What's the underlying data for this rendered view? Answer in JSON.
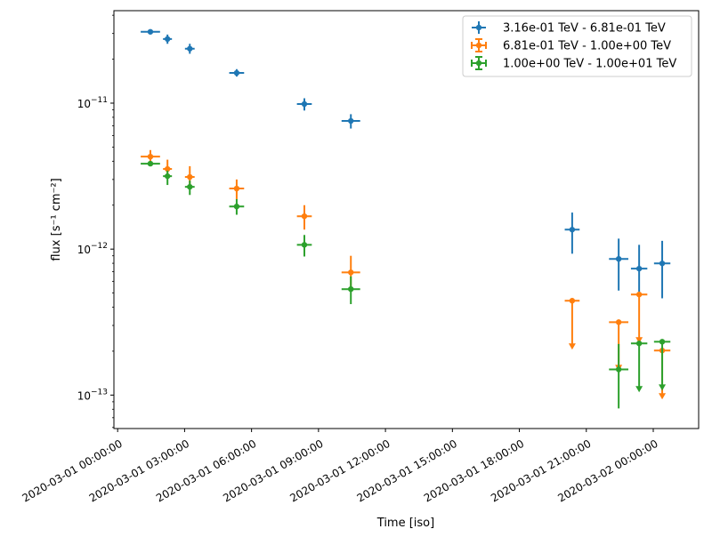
{
  "chart_data": {
    "type": "scatter",
    "title": "",
    "xlabel": "Time [iso]",
    "ylabel": "flux [s⁻¹ cm⁻²]",
    "yscale": "log",
    "ylim": [
      5.9e-14,
      4.3e-11
    ],
    "xlim": [
      "2020-02-29T23:50",
      "2020-03-02T02:02"
    ],
    "grid": false,
    "legend_position": "top-right",
    "x_ticks": [
      {
        "t": "2020-03-01T00:00",
        "label": "2020-03-01 00:00:00"
      },
      {
        "t": "2020-03-01T03:00",
        "label": "2020-03-01 03:00:00"
      },
      {
        "t": "2020-03-01T06:00",
        "label": "2020-03-01 06:00:00"
      },
      {
        "t": "2020-03-01T09:00",
        "label": "2020-03-01 09:00:00"
      },
      {
        "t": "2020-03-01T12:00",
        "label": "2020-03-01 12:00:00"
      },
      {
        "t": "2020-03-01T15:00",
        "label": "2020-03-01 15:00:00"
      },
      {
        "t": "2020-03-01T18:00",
        "label": "2020-03-01 18:00:00"
      },
      {
        "t": "2020-03-01T21:00",
        "label": "2020-03-01 21:00:00"
      },
      {
        "t": "2020-03-02T00:00",
        "label": "2020-03-02 00:00:00"
      }
    ],
    "y_ticks": [
      {
        "value": 1e-11,
        "base": "10",
        "exp": "−11"
      },
      {
        "value": 1e-12,
        "base": "10",
        "exp": "−12"
      },
      {
        "value": 1e-13,
        "base": "10",
        "exp": "−13"
      }
    ],
    "series": [
      {
        "name": "3.16e-01 TeV - 6.81e-01 TeV",
        "color": "#1f77b4",
        "points": [
          {
            "t": "2020-03-01T01:28",
            "xerr_min": 26,
            "y": 3.08e-11,
            "ylo": 2.98e-11,
            "yhi": 3.18e-11
          },
          {
            "t": "2020-03-01T02:14",
            "xerr_min": 12,
            "y": 2.75e-11,
            "ylo": 2.55e-11,
            "yhi": 2.95e-11
          },
          {
            "t": "2020-03-01T03:14",
            "xerr_min": 13,
            "y": 2.36e-11,
            "ylo": 2.18e-11,
            "yhi": 2.55e-11
          },
          {
            "t": "2020-03-01T05:20",
            "xerr_min": 20,
            "y": 1.61e-11,
            "ylo": 1.52e-11,
            "yhi": 1.71e-11
          },
          {
            "t": "2020-03-01T08:22",
            "xerr_min": 20,
            "y": 9.86e-12,
            "ylo": 8.9e-12,
            "yhi": 1.08e-11
          },
          {
            "t": "2020-03-01T10:27",
            "xerr_min": 25,
            "y": 7.55e-12,
            "ylo": 6.7e-12,
            "yhi": 8.4e-12
          },
          {
            "t": "2020-03-01T20:22",
            "xerr_min": 20,
            "y": 1.36e-12,
            "ylo": 9.3e-13,
            "yhi": 1.78e-12
          },
          {
            "t": "2020-03-01T22:27",
            "xerr_min": 26,
            "y": 8.57e-13,
            "ylo": 5.2e-13,
            "yhi": 1.18e-12
          },
          {
            "t": "2020-03-01T23:22",
            "xerr_min": 22,
            "y": 7.35e-13,
            "ylo": 5.1e-13,
            "yhi": 1.07e-12
          },
          {
            "t": "2020-03-02T00:24",
            "xerr_min": 22,
            "y": 7.98e-13,
            "ylo": 4.6e-13,
            "yhi": 1.14e-12
          }
        ]
      },
      {
        "name": "6.81e-01 TeV - 1.00e+00 TeV",
        "color": "#ff7f0e",
        "points": [
          {
            "t": "2020-03-01T01:28",
            "xerr_min": 26,
            "y": 4.3e-12,
            "ylo": 3.95e-12,
            "yhi": 4.77e-12
          },
          {
            "t": "2020-03-01T02:14",
            "xerr_min": 12,
            "y": 3.54e-12,
            "ylo": 3.05e-12,
            "yhi": 4.1e-12
          },
          {
            "t": "2020-03-01T03:14",
            "xerr_min": 13,
            "y": 3.12e-12,
            "ylo": 2.7e-12,
            "yhi": 3.7e-12
          },
          {
            "t": "2020-03-01T05:20",
            "xerr_min": 20,
            "y": 2.6e-12,
            "ylo": 2.2e-12,
            "yhi": 3e-12
          },
          {
            "t": "2020-03-01T08:22",
            "xerr_min": 20,
            "y": 1.68e-12,
            "ylo": 1.36e-12,
            "yhi": 2e-12
          },
          {
            "t": "2020-03-01T10:27",
            "xerr_min": 25,
            "y": 6.93e-13,
            "ylo": 5.3e-13,
            "yhi": 9e-13
          },
          {
            "t": "2020-03-01T20:22",
            "xerr_min": 20,
            "y": 4.43e-13,
            "upper_limit": true
          },
          {
            "t": "2020-03-01T22:27",
            "xerr_min": 26,
            "y": 3.16e-13,
            "upper_limit": true
          },
          {
            "t": "2020-03-01T23:22",
            "xerr_min": 22,
            "y": 4.89e-13,
            "upper_limit": true
          },
          {
            "t": "2020-03-02T00:24",
            "xerr_min": 22,
            "y": 2.02e-13,
            "upper_limit": true
          }
        ]
      },
      {
        "name": "1.00e+00 TeV - 1.00e+01 TeV",
        "color": "#2ca02c",
        "points": [
          {
            "t": "2020-03-01T01:28",
            "xerr_min": 26,
            "y": 3.85e-12,
            "ylo": 3.7e-12,
            "yhi": 4e-12
          },
          {
            "t": "2020-03-01T02:14",
            "xerr_min": 12,
            "y": 3.16e-12,
            "ylo": 2.75e-12,
            "yhi": 3.45e-12
          },
          {
            "t": "2020-03-01T03:14",
            "xerr_min": 13,
            "y": 2.67e-12,
            "ylo": 2.35e-12,
            "yhi": 2.95e-12
          },
          {
            "t": "2020-03-01T05:20",
            "xerr_min": 20,
            "y": 1.96e-12,
            "ylo": 1.72e-12,
            "yhi": 2.2e-12
          },
          {
            "t": "2020-03-01T08:22",
            "xerr_min": 20,
            "y": 1.07e-12,
            "ylo": 8.9e-13,
            "yhi": 1.25e-12
          },
          {
            "t": "2020-03-01T10:27",
            "xerr_min": 25,
            "y": 5.32e-13,
            "ylo": 4.2e-13,
            "yhi": 6.5e-13
          },
          {
            "t": "2020-03-01T22:27",
            "xerr_min": 26,
            "y": 1.5e-13,
            "ylo": 8.1e-14,
            "yhi": 2.24e-13
          },
          {
            "t": "2020-03-01T23:22",
            "xerr_min": 22,
            "y": 2.26e-13,
            "upper_limit": true
          },
          {
            "t": "2020-03-02T00:24",
            "xerr_min": 22,
            "y": 2.32e-13,
            "upper_limit": true
          }
        ]
      }
    ]
  }
}
